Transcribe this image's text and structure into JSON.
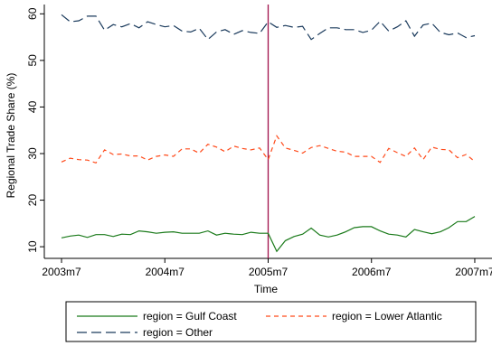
{
  "chart_data": {
    "type": "line",
    "title": "",
    "xlabel": "Time",
    "ylabel": "Regional Trade Share (%)",
    "x_ticks": [
      "2003m7",
      "2004m7",
      "2005m7",
      "2006m7",
      "2007m7"
    ],
    "y_ticks": [
      10,
      20,
      30,
      40,
      50,
      60
    ],
    "xlim": [
      "2003m5",
      "2007m9"
    ],
    "ylim": [
      7.5,
      62
    ],
    "vline": {
      "x": "2005m7",
      "color": "#a0104a"
    },
    "grid": false,
    "legend_position": "bottom",
    "x": [
      "2003m7",
      "2003m8",
      "2003m9",
      "2003m10",
      "2003m11",
      "2003m12",
      "2004m1",
      "2004m2",
      "2004m3",
      "2004m4",
      "2004m5",
      "2004m6",
      "2004m7",
      "2004m8",
      "2004m9",
      "2004m10",
      "2004m11",
      "2004m12",
      "2005m1",
      "2005m2",
      "2005m3",
      "2005m4",
      "2005m5",
      "2005m6",
      "2005m7",
      "2005m8",
      "2005m9",
      "2005m10",
      "2005m11",
      "2005m12",
      "2006m1",
      "2006m2",
      "2006m3",
      "2006m4",
      "2006m5",
      "2006m6",
      "2006m7",
      "2006m8",
      "2006m9",
      "2006m10",
      "2006m11",
      "2006m12",
      "2007m1",
      "2007m2",
      "2007m3",
      "2007m4",
      "2007m5",
      "2007m6",
      "2007m7"
    ],
    "series": [
      {
        "name": "region = Gulf Coast",
        "color": "#1a7a1a",
        "dash": "solid",
        "values": [
          11.9,
          12.3,
          12.5,
          12.0,
          12.6,
          12.6,
          12.2,
          12.7,
          12.6,
          13.4,
          13.2,
          12.9,
          13.1,
          13.2,
          12.9,
          12.9,
          12.9,
          13.4,
          12.5,
          12.9,
          12.7,
          12.6,
          13.1,
          12.9,
          12.9,
          9.0,
          11.3,
          12.2,
          12.7,
          14.0,
          12.5,
          12.1,
          12.5,
          13.2,
          14.1,
          14.3,
          14.3,
          13.4,
          12.7,
          12.5,
          12.1,
          13.7,
          13.2,
          12.8,
          13.2,
          14.1,
          15.4,
          15.4,
          16.5
        ]
      },
      {
        "name": "region = Lower Atlantic",
        "color": "#ff4a1a",
        "dash": "dashed",
        "values": [
          28.2,
          29.0,
          28.7,
          28.6,
          28.0,
          30.8,
          29.8,
          29.9,
          29.5,
          29.5,
          28.6,
          29.4,
          29.7,
          29.4,
          31.0,
          31.0,
          30.1,
          32.0,
          31.4,
          30.4,
          31.6,
          31.1,
          30.8,
          31.2,
          28.7,
          33.8,
          31.2,
          30.7,
          30.1,
          31.3,
          31.7,
          31.1,
          30.5,
          30.3,
          29.4,
          29.4,
          29.4,
          28.1,
          31.1,
          30.2,
          29.4,
          31.2,
          28.7,
          31.4,
          30.9,
          30.8,
          29.1,
          29.8,
          28.3
        ]
      },
      {
        "name": "region = Other",
        "color": "#1a3a5c",
        "dash": "longdash",
        "values": [
          59.8,
          58.3,
          58.5,
          59.5,
          59.5,
          56.5,
          57.7,
          57.2,
          57.9,
          57.0,
          58.3,
          57.7,
          57.2,
          57.5,
          56.3,
          56.1,
          56.9,
          54.5,
          56.1,
          56.6,
          55.6,
          56.4,
          56.0,
          55.8,
          58.3,
          57.1,
          57.5,
          57.1,
          57.3,
          54.5,
          55.8,
          57.0,
          57.0,
          56.6,
          56.6,
          56.0,
          56.5,
          58.4,
          56.3,
          57.2,
          58.5,
          55.2,
          57.6,
          58.0,
          56.0,
          55.5,
          55.9,
          54.9,
          55.3
        ]
      }
    ]
  }
}
